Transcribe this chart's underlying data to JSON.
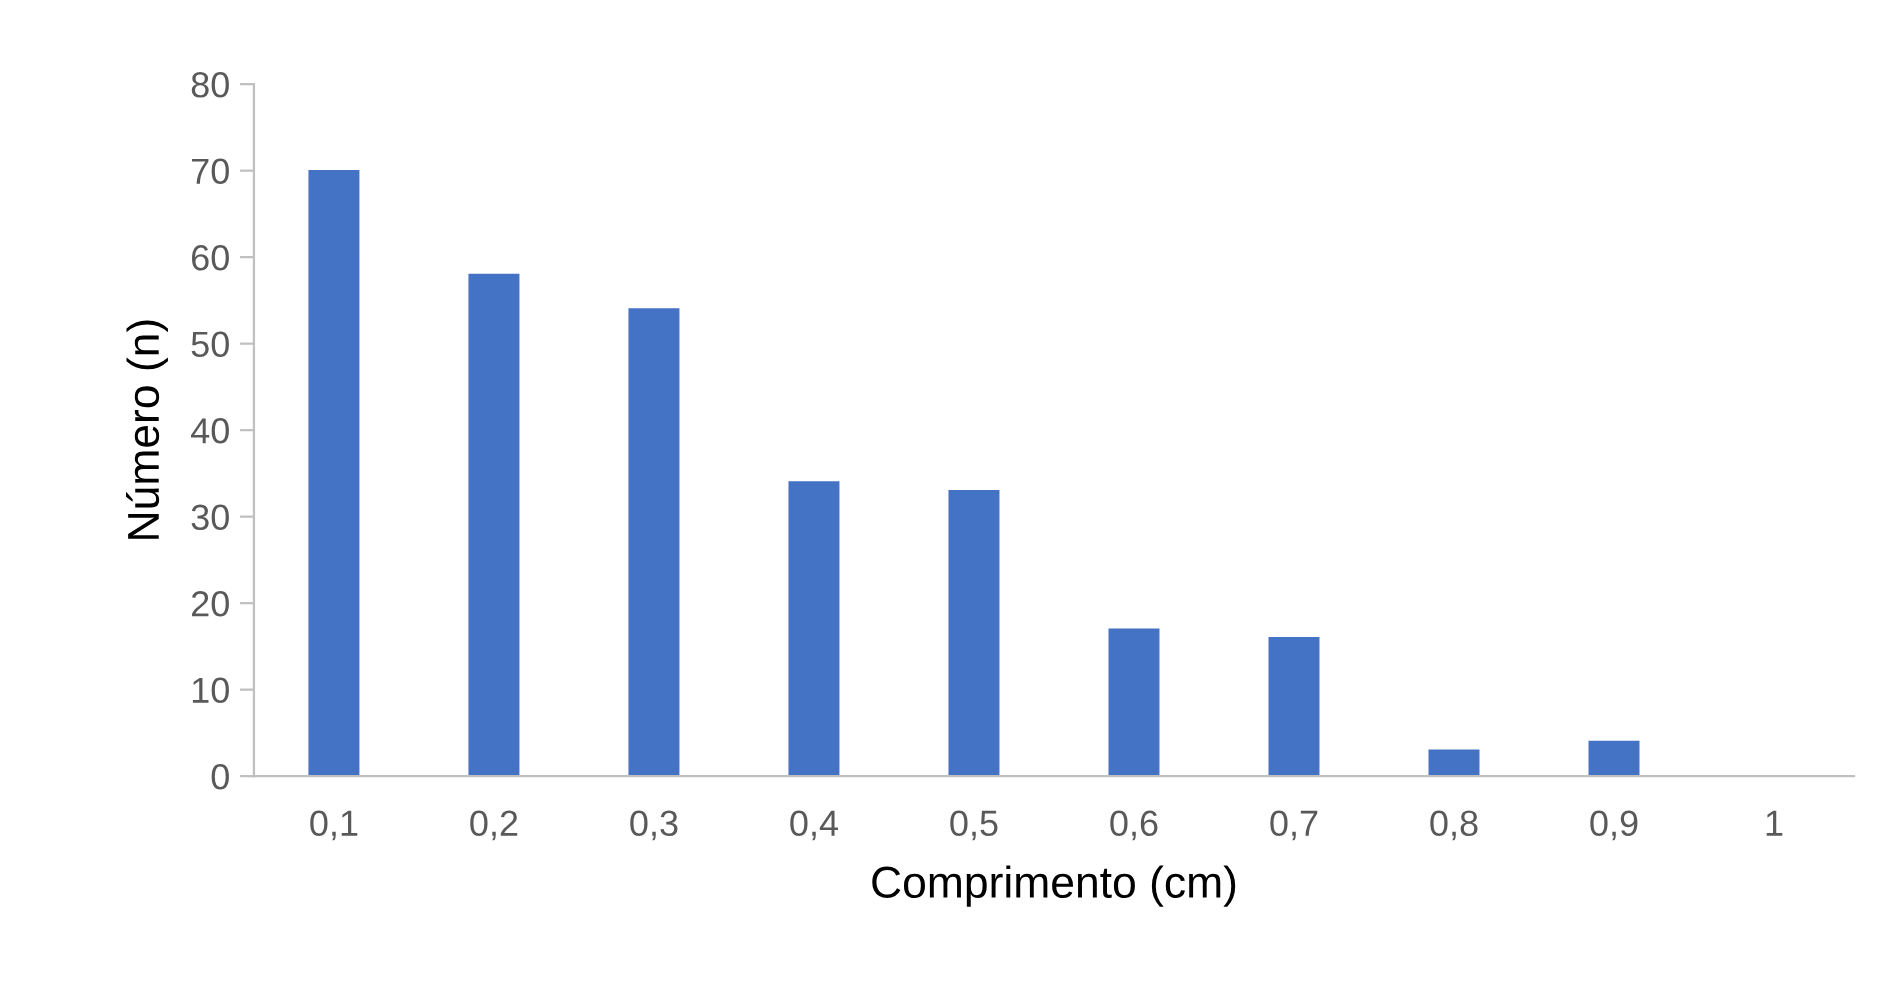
{
  "chart_data": {
    "type": "bar",
    "xlabel": "Comprimento (cm)",
    "ylabel": "Número (n)",
    "categories": [
      "0,1",
      "0,2",
      "0,3",
      "0,4",
      "0,5",
      "0,6",
      "0,7",
      "0,8",
      "0,9",
      "1"
    ],
    "values": [
      70,
      58,
      54,
      34,
      33,
      17,
      16,
      3,
      4,
      0
    ],
    "color": "#4472c4",
    "ylim": [
      0,
      80
    ],
    "yticks": [
      0,
      10,
      20,
      30,
      40,
      50,
      60,
      70,
      80
    ],
    "grid": false
  }
}
